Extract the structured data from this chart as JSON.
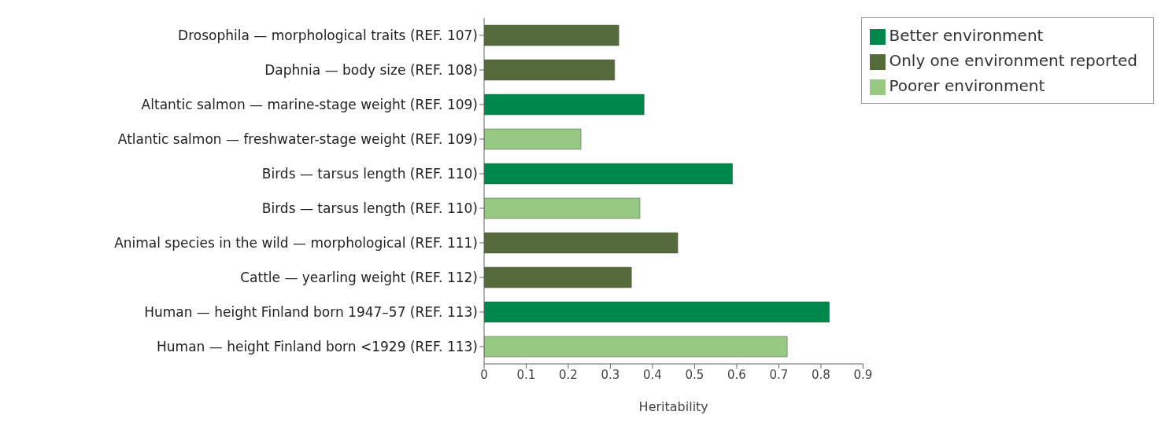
{
  "chart_data": {
    "type": "bar",
    "orientation": "horizontal",
    "stacked": true,
    "xlabel": "Heritability",
    "categories": [
      "Drosophila — morphological traits (REF. 107)",
      "Daphnia — body size (REF. 108)",
      "Altantic salmon — marine-stage weight (REF. 109)",
      "Atlantic salmon — freshwater-stage weight (REF. 109)",
      "Birds — tarsus length (REF. 110)",
      "Birds — tarsus length (REF. 110)",
      "Animal species in the wild — morphological (REF. 111)",
      "Cattle — yearling weight (REF. 112)",
      "Human — height Finland born 1947–57 (REF. 113)",
      "Human — height Finland born <1929 (REF. 113)"
    ],
    "series": [
      {
        "name": "Only one environment reported",
        "color": "#566b3c",
        "values": [
          0.32,
          0.31,
          null,
          null,
          null,
          null,
          0.46,
          0.35,
          null,
          null
        ]
      },
      {
        "name": "Better environment",
        "color": "#00874c",
        "values": [
          null,
          null,
          0.38,
          null,
          0.59,
          null,
          null,
          null,
          0.82,
          null
        ]
      },
      {
        "name": "Poorer environment",
        "color": "#97c983",
        "values": [
          null,
          null,
          null,
          0.23,
          null,
          0.37,
          null,
          null,
          null,
          0.72
        ]
      }
    ],
    "xlim": [
      0,
      0.9
    ],
    "xticks": [
      0,
      0.1,
      0.2,
      0.3,
      0.4,
      0.5,
      0.6,
      0.7,
      0.8,
      0.9
    ],
    "grid": false,
    "legend": "top right"
  }
}
